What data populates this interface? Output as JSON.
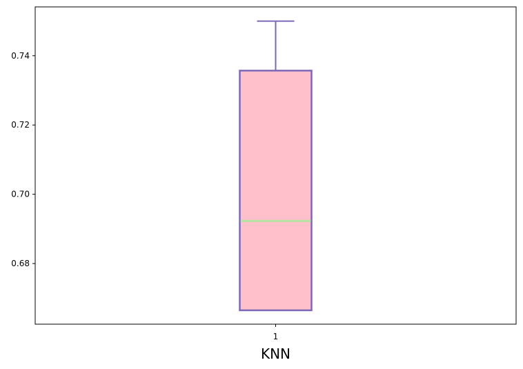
{
  "chart_data": {
    "type": "boxplot",
    "title": "",
    "xlabel": "KNN",
    "ylabel": "",
    "categories": [
      "1"
    ],
    "boxes": [
      {
        "category": "1",
        "whisker_low": 0.6665,
        "q1": 0.6665,
        "median": 0.6923,
        "q3": 0.7357,
        "whisker_high": 0.75
      }
    ],
    "ylim": [
      0.6625,
      0.7541
    ],
    "yticks": [
      0.68,
      0.7,
      0.72,
      0.74
    ],
    "ytick_labels": [
      "0.68",
      "0.70",
      "0.72",
      "0.74"
    ],
    "grid": false,
    "colors": {
      "box_fill": "#FFC0CB",
      "box_edge": "#7B68B6",
      "whisker": "#7B68B6",
      "median": "#B5E3A0",
      "axes": "#000000"
    }
  }
}
